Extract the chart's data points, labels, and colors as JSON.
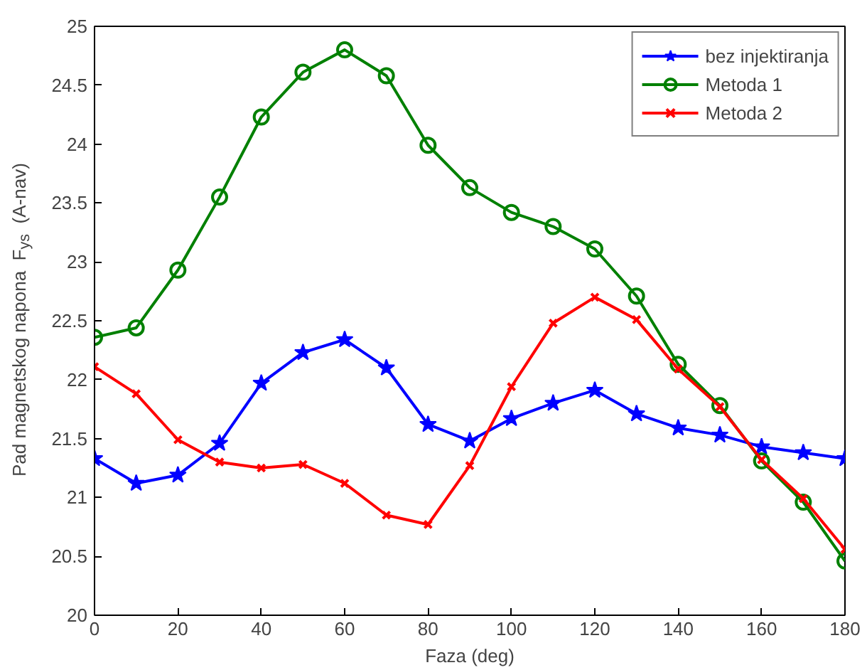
{
  "chart_data": {
    "type": "line",
    "xlabel": "Faza (deg)",
    "ylabel": "Pad magnetskog napona  F$_{ys}$  (A-nav)",
    "x": [
      0,
      10,
      20,
      30,
      40,
      50,
      60,
      70,
      80,
      90,
      100,
      110,
      120,
      130,
      140,
      150,
      160,
      170,
      180
    ],
    "series": [
      {
        "name": "bez injektiranja",
        "color": "#0000ff",
        "marker": "star",
        "values": [
          21.33,
          21.12,
          21.19,
          21.46,
          21.97,
          22.23,
          22.34,
          22.1,
          21.62,
          21.48,
          21.67,
          21.8,
          21.91,
          21.71,
          21.59,
          21.53,
          21.43,
          21.38,
          21.33
        ]
      },
      {
        "name": "Metoda 1",
        "color": "#008000",
        "marker": "circle",
        "values": [
          22.36,
          22.44,
          22.93,
          23.55,
          24.23,
          24.61,
          24.8,
          24.58,
          23.99,
          23.63,
          23.42,
          23.3,
          23.11,
          22.71,
          22.13,
          21.78,
          21.31,
          20.96,
          20.46
        ]
      },
      {
        "name": "Metoda 2",
        "color": "#ff0000",
        "marker": "cross",
        "values": [
          22.11,
          21.88,
          21.49,
          21.3,
          21.25,
          21.28,
          21.12,
          20.85,
          20.77,
          21.27,
          21.94,
          22.48,
          22.7,
          22.51,
          22.09,
          21.77,
          21.32,
          20.99,
          20.56
        ]
      }
    ],
    "xlim": [
      0,
      180
    ],
    "xticks": [
      0,
      20,
      40,
      60,
      80,
      100,
      120,
      140,
      160,
      180
    ],
    "ylim": [
      20,
      25
    ],
    "yticks": [
      20,
      20.5,
      21,
      21.5,
      22,
      22.5,
      23,
      23.5,
      24,
      24.5,
      25
    ],
    "grid": false,
    "legend": "top right",
    "line_style": "solid"
  }
}
